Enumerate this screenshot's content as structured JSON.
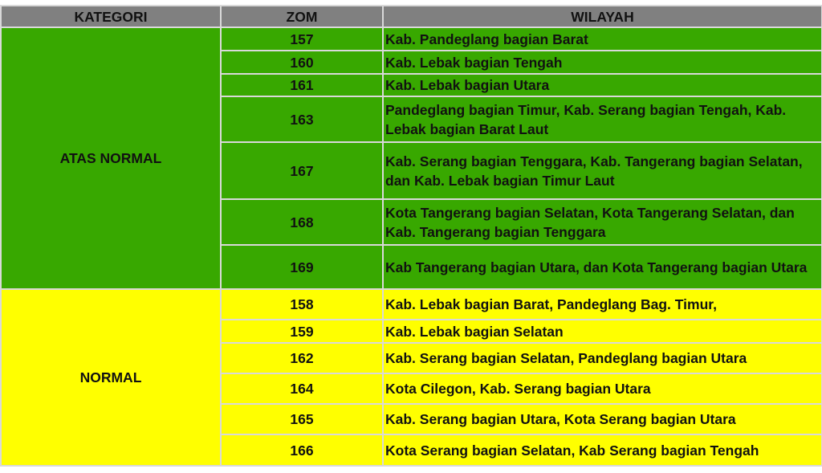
{
  "headers": {
    "kategori": "KATEGORI",
    "zom": "ZOM",
    "wilayah": "WILAYAH"
  },
  "colors": {
    "header": "#808080",
    "atas_normal": "#38a800",
    "normal": "#ffff00",
    "border": "#d9d9d9"
  },
  "groups": [
    {
      "kategori": "ATAS NORMAL",
      "rows": [
        {
          "zom": "157",
          "wilayah": "Kab. Pandeglang bagian Barat"
        },
        {
          "zom": "160",
          "wilayah": "Kab. Lebak bagian Tengah"
        },
        {
          "zom": "161",
          "wilayah": "Kab. Lebak bagian Utara"
        },
        {
          "zom": "163",
          "wilayah": "Pandeglang bagian Timur, Kab. Serang bagian Tengah, Kab. Lebak bagian Barat Laut"
        },
        {
          "zom": "167",
          "wilayah": "Kab. Serang bagian Tenggara, Kab. Tangerang bagian Selatan, dan Kab. Lebak bagian Timur Laut"
        },
        {
          "zom": "168",
          "wilayah": "Kota Tangerang bagian Selatan, Kota Tangerang Selatan, dan Kab. Tangerang bagian Tenggara"
        },
        {
          "zom": "169",
          "wilayah": "Kab Tangerang bagian Utara, dan Kota Tangerang bagian Utara"
        }
      ]
    },
    {
      "kategori": "NORMAL",
      "rows": [
        {
          "zom": "158",
          "wilayah": "Kab. Lebak bagian Barat, Pandeglang Bag. Timur,"
        },
        {
          "zom": "159",
          "wilayah": "Kab. Lebak bagian Selatan"
        },
        {
          "zom": "162",
          "wilayah": "Kab. Serang bagian Selatan, Pandeglang bagian Utara"
        },
        {
          "zom": "164",
          "wilayah": "Kota Cilegon, Kab. Serang bagian Utara"
        },
        {
          "zom": "165",
          "wilayah": "Kab. Serang bagian Utara, Kota Serang bagian Utara"
        },
        {
          "zom": "166",
          "wilayah": "Kota Serang bagian Selatan, Kab Serang bagian Tengah"
        }
      ]
    }
  ]
}
